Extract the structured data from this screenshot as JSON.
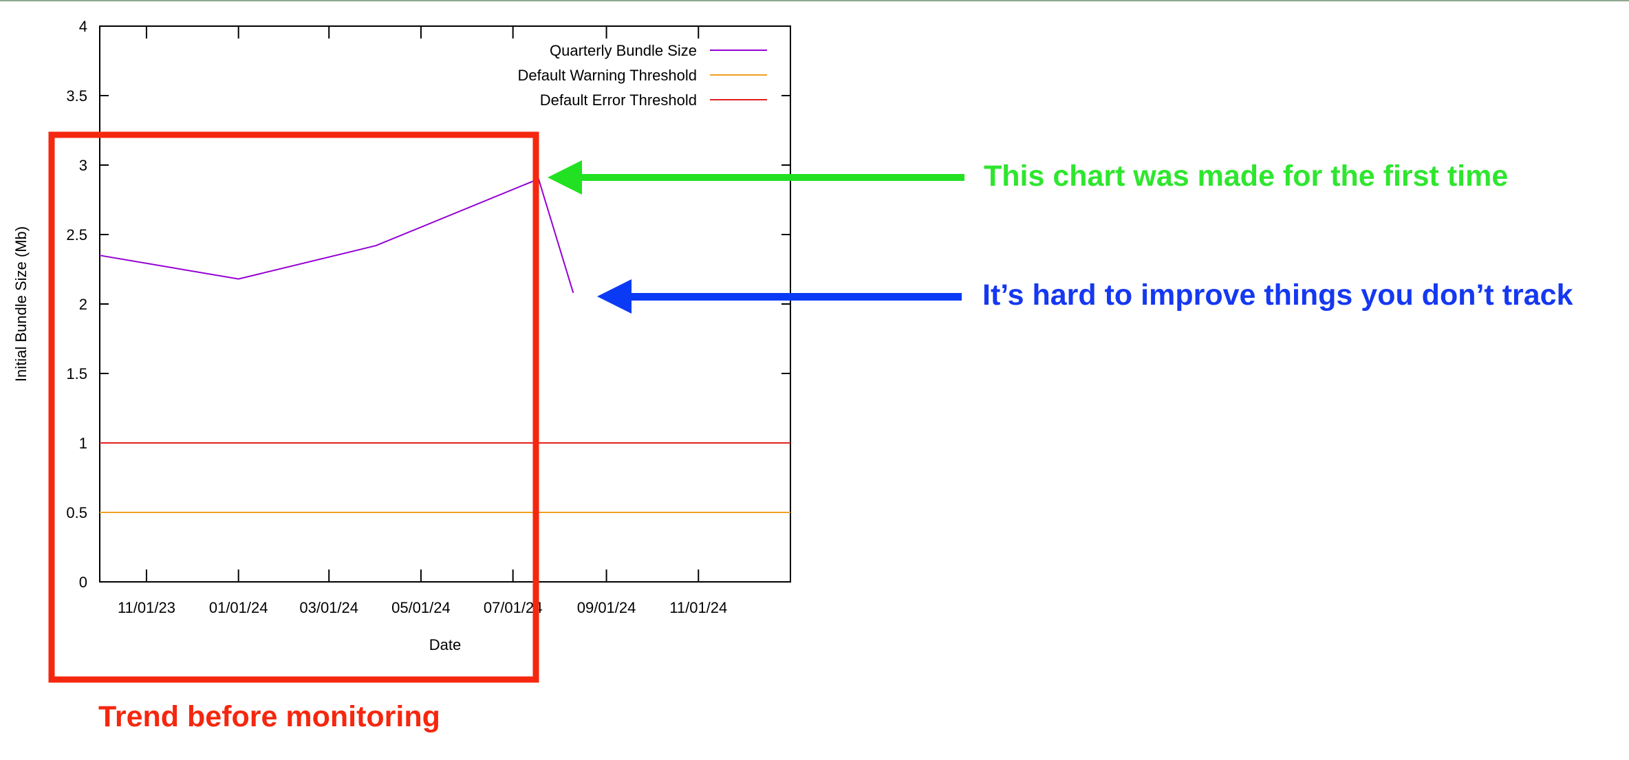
{
  "colors": {
    "page_rule": "#8fa88f",
    "series_line": "#9400d3",
    "warning_line": "#f0a020",
    "error_line": "#e02020",
    "highlight_box": "#f5270f",
    "green_arrow": "#22e022",
    "blue_arrow": "#0b3af5",
    "green_text": "#2ee62e",
    "blue_text": "#1538f0",
    "red_text": "#f5270f"
  },
  "chart_data": {
    "type": "line",
    "xlabel": "Date",
    "ylabel": "Initial Bundle Size (Mb)",
    "ylim": [
      0,
      4
    ],
    "yticks": [
      "0",
      "0.5",
      "1",
      "1.5",
      "2",
      "2.5",
      "3",
      "3.5",
      "4"
    ],
    "xlim": [
      "2023-10-01",
      "2025-01-01"
    ],
    "xticks": [
      {
        "date": "2023-11-01",
        "label": "11/01/23"
      },
      {
        "date": "2024-01-01",
        "label": "01/01/24"
      },
      {
        "date": "2024-03-01",
        "label": "03/01/24"
      },
      {
        "date": "2024-05-01",
        "label": "05/01/24"
      },
      {
        "date": "2024-07-01",
        "label": "07/01/24"
      },
      {
        "date": "2024-09-01",
        "label": "09/01/24"
      },
      {
        "date": "2024-11-01",
        "label": "11/01/24"
      }
    ],
    "grid": false,
    "legend_position": "top-right",
    "series": [
      {
        "name": "Quarterly Bundle Size",
        "x": [
          "2023-10-01",
          "2024-01-01",
          "2024-04-01",
          "2024-07-18",
          "2024-08-10"
        ],
        "values": [
          2.35,
          2.18,
          2.42,
          2.9,
          2.08
        ]
      },
      {
        "name": "Default Warning Threshold",
        "x": [
          "2023-10-01",
          "2025-01-01"
        ],
        "values": [
          0.5,
          0.5
        ]
      },
      {
        "name": "Default Error Threshold",
        "x": [
          "2023-10-01",
          "2025-01-01"
        ],
        "values": [
          1,
          1
        ]
      }
    ]
  },
  "annotations": {
    "first_time": "This chart was made for the first time",
    "hard_to_improve": "It’s hard to improve things you don’t track",
    "trend_before": "Trend before monitoring"
  }
}
